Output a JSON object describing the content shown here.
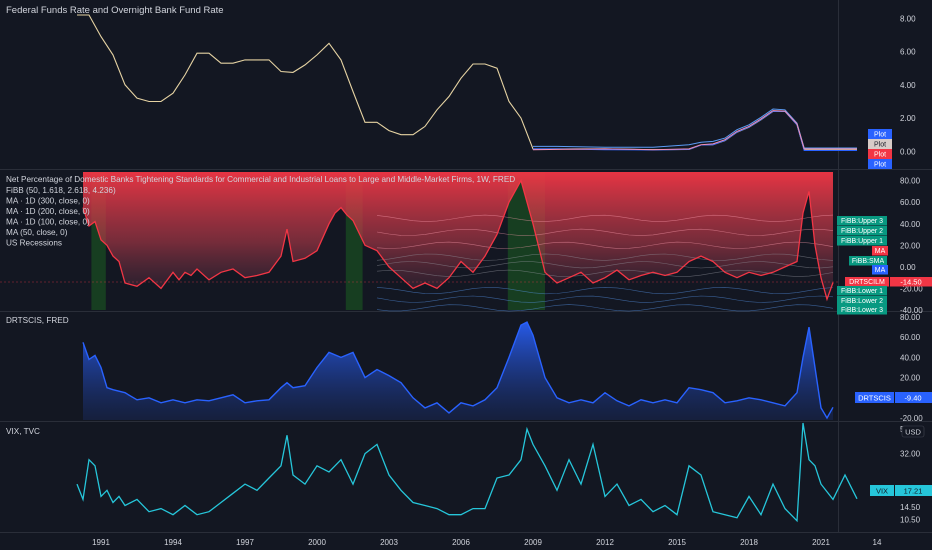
{
  "panes": {
    "fed": {
      "title": "Federal Funds Rate and Overnight Bank Fund Rate",
      "yticks": [
        "8.00",
        "6.00",
        "4.00",
        "2.00",
        "0.00"
      ],
      "tags": [
        "Plot",
        "Plot",
        "Plot",
        "Plot"
      ]
    },
    "drts": {
      "legend": [
        "Net Percentage of Domestic Banks Tightening Standards for Commercial and Industrial Loans to Large and Middle-Market Firms, 1W, FRED",
        "FiBB (50, 1.618, 2.618, 4.236)",
        "MA · 1D (300, close, 0)",
        "MA · 1D (200, close, 0)",
        "MA · 1D (100, close, 0)",
        "MA (50, close, 0)",
        "US Recessions"
      ],
      "yticks": [
        "80.00",
        "60.00",
        "40.00",
        "20.00",
        "0.00",
        "-20.00",
        "-40.00"
      ],
      "tags": [
        "FiBB:Upper 3",
        "FiBB:Upper 2",
        "FiBB:Upper 1",
        "MA",
        "FiBB:SMA",
        "MA",
        "DRTSCILM",
        "FiBB:Lower 1",
        "FiBB:Lower 2",
        "FiBB:Lower 3"
      ],
      "price_tag": "-14.50"
    },
    "drtscis": {
      "title": "DRTSCIS, FRED",
      "yticks": [
        "80.00",
        "60.00",
        "40.00",
        "20.00",
        "0.00",
        "-20.00"
      ],
      "tag_label": "DRTSCIS",
      "tag_value": "-9.40"
    },
    "vix": {
      "title": "VIX, TVC",
      "yticks": [
        "32.00",
        "20.00",
        "14.50",
        "10.50"
      ],
      "top_label": "5",
      "currency": "USD",
      "tag_label": "VIX",
      "tag_value": "17.21"
    }
  },
  "xaxis": [
    "1991",
    "1994",
    "1997",
    "2000",
    "2003",
    "2006",
    "2009",
    "2012",
    "2015",
    "2018",
    "2021",
    "14"
  ],
  "colors": {
    "background": "#131722",
    "fed_line": "#e6d3a3",
    "fed_blue": "#2962ff",
    "fed_light": "#5b9cf6",
    "fed_pink": "#f48fb1",
    "drts_line": "#f23645",
    "drtscis_line": "#2962ff",
    "vix_line": "#26c6da",
    "teal_tag": "#089981",
    "recession": "#1b5e20"
  },
  "chart_data": [
    {
      "type": "line",
      "title": "Federal Funds Rate and Overnight Bank Fund Rate",
      "ylim": [
        -1,
        8.8
      ],
      "x": [
        1990.0,
        1990.5,
        1991.0,
        1991.5,
        1992.0,
        1992.5,
        1993.0,
        1993.5,
        1994.0,
        1994.5,
        1995.0,
        1995.5,
        1996.0,
        1996.5,
        1997.0,
        1997.5,
        1998.0,
        1998.5,
        1999.0,
        1999.5,
        2000.0,
        2000.5,
        2001.0,
        2001.5,
        2002.0,
        2002.5,
        2003.0,
        2003.5,
        2004.0,
        2004.5,
        2005.0,
        2005.5,
        2006.0,
        2006.5,
        2007.0,
        2007.5,
        2008.0,
        2008.5,
        2009.0,
        2010.0,
        2012.0,
        2014.0,
        2015.5,
        2016.0,
        2016.5,
        2017.0,
        2017.5,
        2018.0,
        2018.5,
        2019.0,
        2019.5,
        2020.0,
        2020.3,
        2021.0,
        2022.5
      ],
      "series": [
        {
          "values": [
            8.2,
            8.2,
            6.9,
            5.8,
            4.0,
            3.2,
            3.0,
            3.0,
            3.5,
            4.6,
            5.9,
            5.9,
            5.3,
            5.3,
            5.5,
            5.5,
            5.5,
            4.8,
            4.75,
            5.2,
            5.8,
            6.5,
            5.5,
            3.6,
            1.75,
            1.75,
            1.25,
            1.0,
            1.0,
            1.5,
            2.5,
            3.3,
            4.4,
            5.25,
            5.25,
            5.0,
            3.0,
            2.0,
            0.15,
            0.15,
            0.15,
            0.1,
            0.12,
            0.38,
            0.4,
            0.65,
            1.15,
            1.45,
            1.9,
            2.4,
            2.4,
            1.6,
            0.08,
            0.08,
            0.08
          ]
        },
        {
          "values": [
            null,
            null,
            null,
            null,
            null,
            null,
            null,
            null,
            null,
            null,
            null,
            null,
            null,
            null,
            null,
            null,
            null,
            null,
            null,
            null,
            null,
            null,
            null,
            null,
            null,
            null,
            null,
            null,
            null,
            null,
            null,
            null,
            null,
            null,
            null,
            null,
            null,
            null,
            0.15,
            0.15,
            0.1,
            0.08,
            0.12,
            0.38,
            0.4,
            0.66,
            1.16,
            1.46,
            1.91,
            2.41,
            2.4,
            1.6,
            0.05,
            0.05,
            0.05
          ]
        },
        {
          "values": [
            null,
            null,
            null,
            null,
            null,
            null,
            null,
            null,
            null,
            null,
            null,
            null,
            null,
            null,
            null,
            null,
            null,
            null,
            null,
            null,
            null,
            null,
            null,
            null,
            null,
            null,
            null,
            null,
            null,
            null,
            null,
            null,
            null,
            null,
            null,
            null,
            null,
            null,
            0.3,
            0.3,
            0.25,
            0.25,
            0.4,
            0.55,
            0.6,
            0.8,
            1.3,
            1.6,
            2.05,
            2.55,
            2.5,
            1.7,
            0.2,
            0.2,
            0.2
          ]
        },
        {
          "values": [
            null,
            null,
            null,
            null,
            null,
            null,
            null,
            null,
            null,
            null,
            null,
            null,
            null,
            null,
            null,
            null,
            null,
            null,
            null,
            null,
            null,
            null,
            null,
            null,
            null,
            null,
            null,
            null,
            null,
            null,
            null,
            null,
            null,
            null,
            null,
            null,
            null,
            null,
            0.1,
            0.12,
            0.15,
            0.1,
            0.15,
            0.4,
            0.45,
            0.7,
            1.2,
            1.5,
            1.95,
            2.45,
            2.42,
            1.65,
            0.15,
            0.15,
            0.15
          ]
        }
      ]
    },
    {
      "type": "area",
      "title": "Net Percentage of Domestic Banks Tightening Standards for Commercial and Industrial Loans to Large and Middle-Market Firms, 1W, FRED",
      "ylim": [
        -40,
        88
      ],
      "x": [
        1990.25,
        1990.5,
        1990.75,
        1991.0,
        1991.25,
        1991.5,
        1991.75,
        1992.0,
        1992.5,
        1993.0,
        1993.5,
        1994.0,
        1994.25,
        1994.5,
        1994.75,
        1995.0,
        1995.5,
        1996.0,
        1996.5,
        1997.0,
        1997.5,
        1998.0,
        1998.5,
        1998.75,
        1999.0,
        1999.5,
        2000.0,
        2000.5,
        2000.75,
        2001.0,
        2001.25,
        2001.5,
        2002.0,
        2002.5,
        2003.0,
        2003.5,
        2004.0,
        2004.5,
        2005.0,
        2005.5,
        2006.0,
        2006.5,
        2007.0,
        2007.5,
        2008.0,
        2008.5,
        2008.75,
        2009.0,
        2009.5,
        2010.0,
        2010.5,
        2011.0,
        2011.5,
        2012.0,
        2012.5,
        2013.0,
        2013.5,
        2014.0,
        2014.5,
        2015.0,
        2015.5,
        2016.0,
        2016.5,
        2017.0,
        2017.5,
        2018.0,
        2018.5,
        2019.0,
        2019.5,
        2020.0,
        2020.25,
        2020.5,
        2020.75,
        2021.0,
        2021.25,
        2021.5
      ],
      "series": [
        {
          "name": "DRTSCILM",
          "values": [
            55,
            38,
            42,
            25,
            20,
            10,
            5,
            -15,
            -18,
            -10,
            -20,
            -5,
            -12,
            -5,
            -8,
            -2,
            -12,
            -5,
            -2,
            -10,
            -8,
            -5,
            10,
            35,
            5,
            8,
            15,
            40,
            50,
            55,
            48,
            43,
            20,
            15,
            0,
            -10,
            -20,
            -15,
            -20,
            -10,
            5,
            -5,
            10,
            30,
            60,
            80,
            60,
            40,
            -5,
            -15,
            -10,
            -5,
            -15,
            -10,
            -3,
            -12,
            -8,
            -5,
            -8,
            -5,
            5,
            10,
            5,
            -5,
            -10,
            -5,
            -8,
            -5,
            0,
            5,
            50,
            70,
            20,
            -10,
            -30,
            -14.5
          ]
        }
      ],
      "recessions": [
        [
          1990.6,
          1991.2
        ],
        [
          2001.2,
          2001.9
        ],
        [
          2007.95,
          2009.5
        ]
      ],
      "bands": {
        "upper3": 45,
        "upper2": 32,
        "upper1": 20,
        "ma_top": 9,
        "sma": 2,
        "ma": -6,
        "lower1": -22,
        "lower2": -30,
        "lower3": -38
      }
    },
    {
      "type": "area",
      "title": "DRTSCIS, FRED",
      "ylim": [
        -22,
        84
      ],
      "x": [
        1990.25,
        1990.5,
        1990.75,
        1991.0,
        1991.25,
        1991.5,
        1992.0,
        1992.5,
        1993.0,
        1993.5,
        1994.0,
        1994.5,
        1995.0,
        1995.5,
        1996.0,
        1996.5,
        1997.0,
        1997.5,
        1998.0,
        1998.5,
        1998.75,
        1999.0,
        1999.5,
        2000.0,
        2000.5,
        2001.0,
        2001.5,
        2002.0,
        2002.5,
        2003.0,
        2003.5,
        2004.0,
        2004.5,
        2005.0,
        2005.5,
        2006.0,
        2006.5,
        2007.0,
        2007.5,
        2008.0,
        2008.5,
        2008.75,
        2009.0,
        2009.5,
        2010.0,
        2010.5,
        2011.0,
        2011.5,
        2012.0,
        2012.5,
        2013.0,
        2013.5,
        2014.0,
        2014.5,
        2015.0,
        2015.5,
        2016.0,
        2016.5,
        2017.0,
        2017.5,
        2018.0,
        2018.5,
        2019.0,
        2019.5,
        2020.0,
        2020.25,
        2020.5,
        2020.75,
        2021.0,
        2021.25,
        2021.5
      ],
      "series": [
        {
          "name": "DRTSCIS",
          "values": [
            55,
            38,
            42,
            30,
            10,
            8,
            5,
            -2,
            0,
            -5,
            -2,
            -5,
            -2,
            -3,
            0,
            3,
            -5,
            -3,
            -2,
            10,
            15,
            10,
            12,
            30,
            45,
            40,
            45,
            20,
            28,
            22,
            15,
            0,
            -10,
            -5,
            -15,
            -5,
            -8,
            -2,
            10,
            40,
            72,
            75,
            62,
            20,
            0,
            -5,
            -2,
            -5,
            5,
            -3,
            -8,
            -2,
            -5,
            -2,
            -5,
            10,
            8,
            5,
            -5,
            -3,
            0,
            -2,
            -5,
            -8,
            5,
            40,
            70,
            30,
            -10,
            -20,
            -9.4
          ]
        }
      ]
    },
    {
      "type": "line",
      "title": "VIX, TVC",
      "ylim": [
        7,
        42
      ],
      "x": [
        1990.0,
        1990.25,
        1990.5,
        1990.75,
        1991.0,
        1991.25,
        1991.5,
        1991.75,
        1992.0,
        1992.5,
        1993.0,
        1993.5,
        1994.0,
        1994.5,
        1995.0,
        1995.5,
        1996.0,
        1996.5,
        1997.0,
        1997.5,
        1998.0,
        1998.5,
        1998.75,
        1999.0,
        1999.5,
        2000.0,
        2000.5,
        2001.0,
        2001.5,
        2002.0,
        2002.5,
        2003.0,
        2003.5,
        2004.0,
        2004.5,
        2005.0,
        2005.5,
        2006.0,
        2006.5,
        2007.0,
        2007.5,
        2008.0,
        2008.5,
        2008.75,
        2009.0,
        2009.5,
        2010.0,
        2010.5,
        2011.0,
        2011.5,
        2012.0,
        2012.5,
        2013.0,
        2013.5,
        2014.0,
        2014.5,
        2015.0,
        2015.5,
        2016.0,
        2016.5,
        2017.0,
        2017.5,
        2018.0,
        2018.5,
        2019.0,
        2019.5,
        2020.0,
        2020.25,
        2020.5,
        2020.75,
        2021.0,
        2021.5,
        2022.0,
        2022.5
      ],
      "series": [
        {
          "name": "VIX",
          "values": [
            22,
            17,
            30,
            28,
            18,
            20,
            16,
            18,
            15,
            17,
            13,
            14,
            12,
            15,
            12,
            13,
            16,
            19,
            22,
            20,
            24,
            28,
            38,
            25,
            22,
            28,
            26,
            30,
            22,
            32,
            35,
            25,
            20,
            16,
            15,
            14,
            12,
            12,
            14,
            14,
            24,
            25,
            30,
            40,
            35,
            28,
            20,
            30,
            22,
            35,
            18,
            22,
            15,
            17,
            13,
            15,
            12,
            28,
            25,
            13,
            12,
            11,
            18,
            12,
            22,
            14,
            10,
            42,
            30,
            28,
            22,
            17,
            25,
            17.21
          ]
        }
      ]
    }
  ]
}
